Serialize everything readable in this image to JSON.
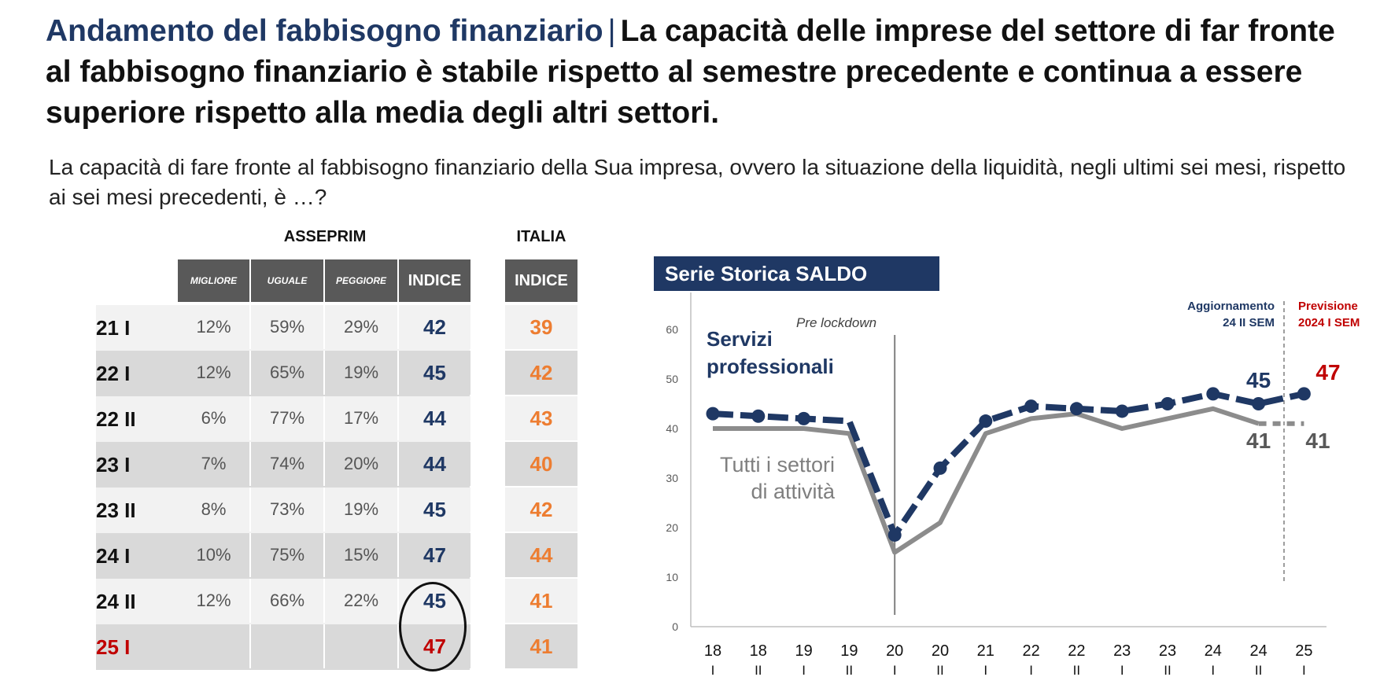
{
  "headline": {
    "topic": "Andamento del fabbisogno finanziario",
    "separator": "|",
    "text": "La capacità delle imprese del settore di far fronte al fabbisogno finanziario è stabile rispetto al semestre precedente e continua a essere superiore rispetto alla media degli altri settori."
  },
  "question": "La capacità di fare fronte al fabbisogno finanziario della Sua impresa, ovvero la situazione della liquidità, negli ultimi sei mesi, rispetto ai sei mesi precedenti, è …?",
  "table": {
    "group_asseprim": "ASSEPRIM",
    "group_italia": "ITALIA",
    "headers": {
      "migliore": "MIGLIORE",
      "uguale": "UGUALE",
      "peggiore": "PEGGIORE",
      "indice": "INDICE",
      "indice_italia": "INDICE"
    },
    "rows": [
      {
        "period": "21 I",
        "migliore": "12%",
        "uguale": "59%",
        "peggiore": "29%",
        "indice": "42",
        "italia": "39"
      },
      {
        "period": "22 I",
        "migliore": "12%",
        "uguale": "65%",
        "peggiore": "19%",
        "indice": "45",
        "italia": "42"
      },
      {
        "period": "22 II",
        "migliore": "6%",
        "uguale": "77%",
        "peggiore": "17%",
        "indice": "44",
        "italia": "43"
      },
      {
        "period": "23 I",
        "migliore": "7%",
        "uguale": "74%",
        "peggiore": "20%",
        "indice": "44",
        "italia": "40"
      },
      {
        "period": "23 II",
        "migliore": "8%",
        "uguale": "73%",
        "peggiore": "19%",
        "indice": "45",
        "italia": "42"
      },
      {
        "period": "24 I",
        "migliore": "10%",
        "uguale": "75%",
        "peggiore": "15%",
        "indice": "47",
        "italia": "44"
      },
      {
        "period": "24 II",
        "migliore": "12%",
        "uguale": "66%",
        "peggiore": "22%",
        "indice": "45",
        "italia": "41"
      },
      {
        "period": "25 I",
        "migliore": "",
        "uguale": "",
        "peggiore": "",
        "indice": "47",
        "italia": "41"
      }
    ]
  },
  "colors": {
    "navy": "#1f3864",
    "grey_line": "#8c8c8c",
    "orange": "#ed7d31",
    "forecast_red": "#c00000",
    "header_grey": "#595959",
    "cell_light": "#f2f2f2",
    "cell_dark": "#d9d9d9"
  },
  "chart_data": {
    "type": "line",
    "title": "Serie Storica SALDO",
    "categories": [
      "18 I",
      "18 II",
      "19 I",
      "19 II",
      "20 I",
      "20 II",
      "21 I",
      "22 I",
      "22 II",
      "23 I",
      "23 II",
      "24 I",
      "24 II",
      "25 I"
    ],
    "ylim": [
      0,
      60
    ],
    "yticks": [
      0,
      10,
      20,
      30,
      40,
      50,
      60
    ],
    "series": [
      {
        "name": "Servizi professionali",
        "values": [
          43,
          42.5,
          42,
          41.5,
          18.5,
          32,
          41.5,
          44.5,
          44,
          43.5,
          45,
          47,
          45,
          47
        ]
      },
      {
        "name": "Tutti i settori di attività",
        "values": [
          40,
          40,
          40,
          39,
          15,
          21,
          39,
          42,
          43,
          40,
          42,
          44,
          41,
          41
        ]
      }
    ],
    "annotations": {
      "pre_lockdown": "Pre lockdown",
      "update": "Aggiornamento 24 II SEM",
      "forecast": "Previsione 2024 I SEM",
      "servizi_label": "Servizi professionali",
      "tutti_label": "Tutti i settori di attività",
      "label_45": "45",
      "label_47": "47",
      "label_41a": "41",
      "label_41b": "41"
    }
  }
}
